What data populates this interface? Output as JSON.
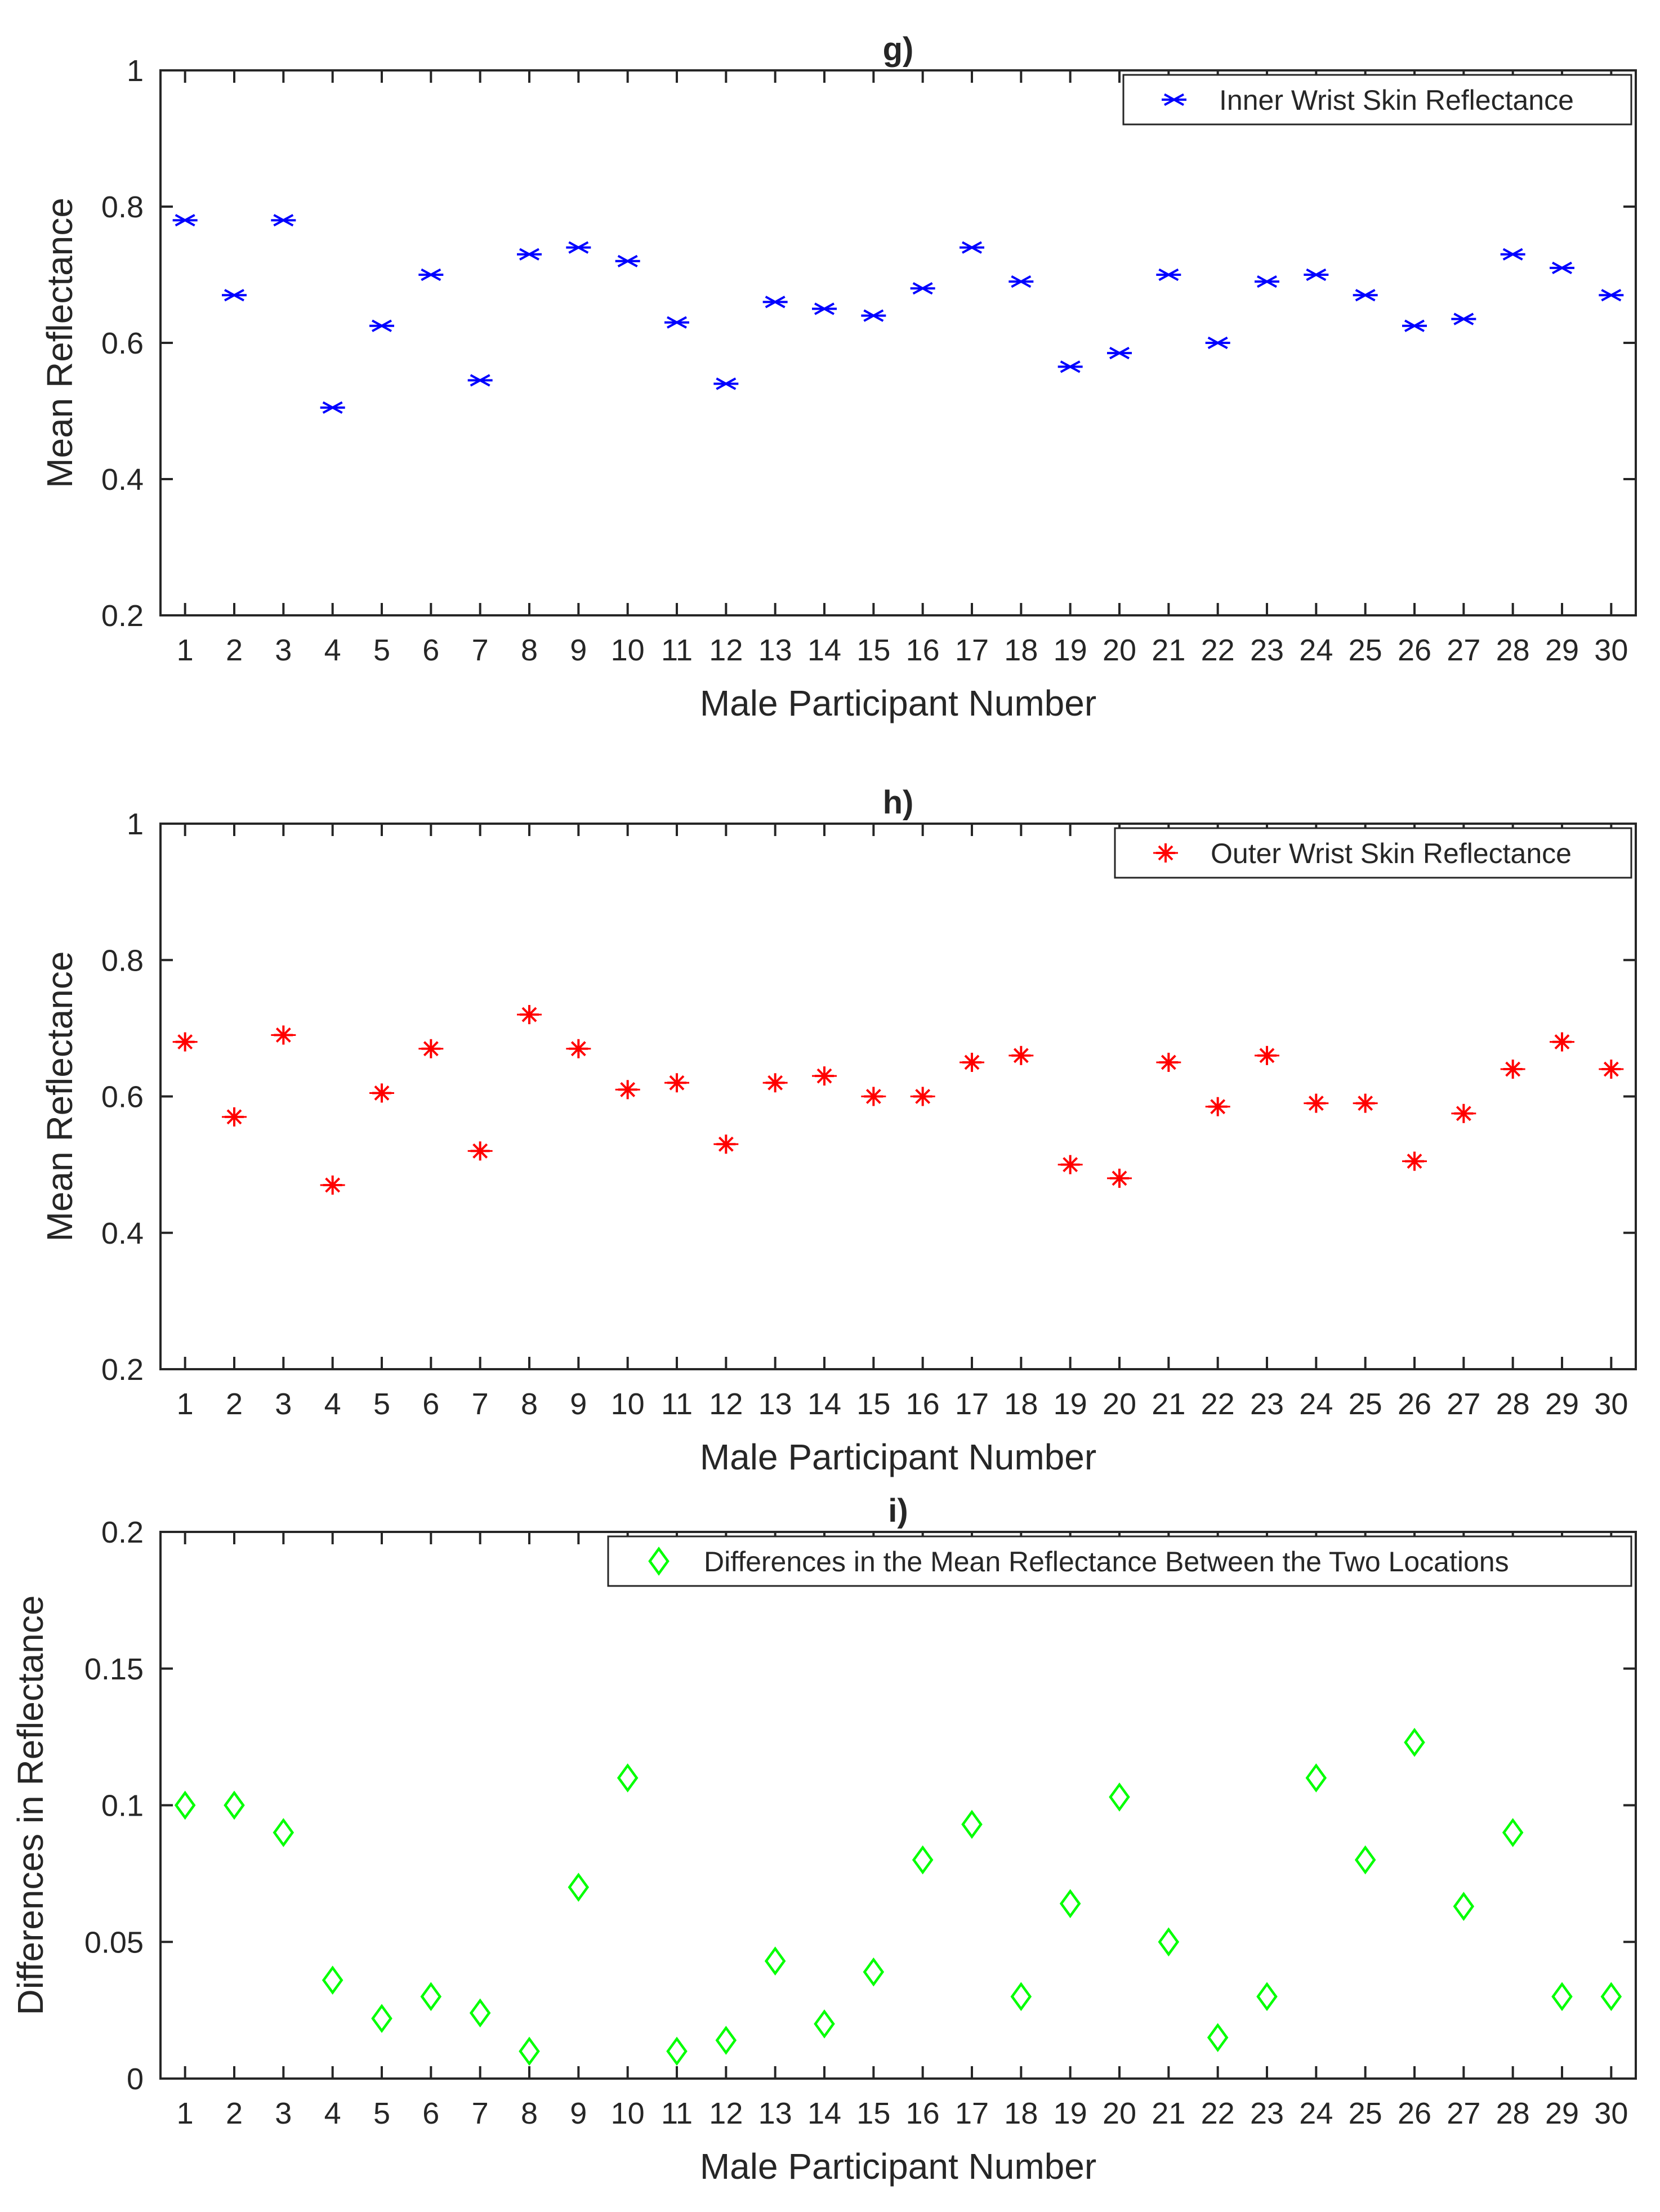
{
  "chart_data": [
    {
      "type": "scatter",
      "title": "g)",
      "xlabel": "Male Participant Number",
      "ylabel": "Mean Reflectance",
      "xlim": [
        0.5,
        30.5
      ],
      "ylim": [
        0.2,
        1
      ],
      "xticks": [
        1,
        2,
        3,
        4,
        5,
        6,
        7,
        8,
        9,
        10,
        11,
        12,
        13,
        14,
        15,
        16,
        17,
        18,
        19,
        20,
        21,
        22,
        23,
        24,
        25,
        26,
        27,
        28,
        29,
        30
      ],
      "yticks": [
        0.2,
        0.4,
        0.6,
        0.8,
        1
      ],
      "ytick_labels": [
        "0.2",
        "0.4",
        "0.6",
        "0.8",
        "1"
      ],
      "legend_position": "top-right",
      "grid": false,
      "series": [
        {
          "name": "Inner Wrist Skin Reflectance",
          "marker": "x-errorbar",
          "color": "#0000ff",
          "x": [
            1,
            2,
            3,
            4,
            5,
            6,
            7,
            8,
            9,
            10,
            11,
            12,
            13,
            14,
            15,
            16,
            17,
            18,
            19,
            20,
            21,
            22,
            23,
            24,
            25,
            26,
            27,
            28,
            29,
            30
          ],
          "y": [
            0.78,
            0.67,
            0.78,
            0.505,
            0.625,
            0.7,
            0.545,
            0.73,
            0.74,
            0.72,
            0.63,
            0.54,
            0.66,
            0.65,
            0.64,
            0.68,
            0.74,
            0.69,
            0.565,
            0.585,
            0.7,
            0.6,
            0.69,
            0.7,
            0.67,
            0.625,
            0.635,
            0.73,
            0.71,
            0.67
          ]
        }
      ]
    },
    {
      "type": "scatter",
      "title": "h)",
      "xlabel": "Male Participant Number",
      "ylabel": "Mean Reflectance",
      "xlim": [
        0.5,
        30.5
      ],
      "ylim": [
        0.2,
        1
      ],
      "xticks": [
        1,
        2,
        3,
        4,
        5,
        6,
        7,
        8,
        9,
        10,
        11,
        12,
        13,
        14,
        15,
        16,
        17,
        18,
        19,
        20,
        21,
        22,
        23,
        24,
        25,
        26,
        27,
        28,
        29,
        30
      ],
      "yticks": [
        0.2,
        0.4,
        0.6,
        0.8,
        1
      ],
      "ytick_labels": [
        "0.2",
        "0.4",
        "0.6",
        "0.8",
        "1"
      ],
      "legend_position": "top-right",
      "grid": false,
      "series": [
        {
          "name": "Outer Wrist Skin Reflectance",
          "marker": "asterisk",
          "color": "#ff0000",
          "x": [
            1,
            2,
            3,
            4,
            5,
            6,
            7,
            8,
            9,
            10,
            11,
            12,
            13,
            14,
            15,
            16,
            17,
            18,
            19,
            20,
            21,
            22,
            23,
            24,
            25,
            26,
            27,
            28,
            29,
            30
          ],
          "y": [
            0.68,
            0.57,
            0.69,
            0.47,
            0.605,
            0.67,
            0.52,
            0.72,
            0.67,
            0.61,
            0.62,
            0.53,
            0.62,
            0.63,
            0.6,
            0.6,
            0.65,
            0.66,
            0.5,
            0.48,
            0.65,
            0.585,
            0.66,
            0.59,
            0.59,
            0.505,
            0.575,
            0.64,
            0.68,
            0.64
          ]
        }
      ]
    },
    {
      "type": "scatter",
      "title": "i)",
      "xlabel": "Male Participant Number",
      "ylabel": "Differences in Reflectance",
      "xlim": [
        0.5,
        30.5
      ],
      "ylim": [
        0,
        0.2
      ],
      "xticks": [
        1,
        2,
        3,
        4,
        5,
        6,
        7,
        8,
        9,
        10,
        11,
        12,
        13,
        14,
        15,
        16,
        17,
        18,
        19,
        20,
        21,
        22,
        23,
        24,
        25,
        26,
        27,
        28,
        29,
        30
      ],
      "yticks": [
        0,
        0.05,
        0.1,
        0.15,
        0.2
      ],
      "ytick_labels": [
        "0",
        "0.05",
        "0.1",
        "0.15",
        "0.2"
      ],
      "legend_position": "top-right",
      "grid": false,
      "series": [
        {
          "name": "Differences in the Mean Reflectance Between the Two Locations",
          "marker": "diamond",
          "color": "#00ff00",
          "x": [
            1,
            2,
            3,
            4,
            5,
            6,
            7,
            8,
            9,
            10,
            11,
            12,
            13,
            14,
            15,
            16,
            17,
            18,
            19,
            20,
            21,
            22,
            23,
            24,
            25,
            26,
            27,
            28,
            29,
            30
          ],
          "y": [
            0.1,
            0.1,
            0.09,
            0.036,
            0.022,
            0.03,
            0.024,
            0.01,
            0.07,
            0.11,
            0.01,
            0.014,
            0.043,
            0.02,
            0.039,
            0.08,
            0.093,
            0.03,
            0.064,
            0.103,
            0.05,
            0.015,
            0.03,
            0.11,
            0.08,
            0.123,
            0.063,
            0.09,
            0.03,
            0.03
          ]
        }
      ]
    }
  ]
}
